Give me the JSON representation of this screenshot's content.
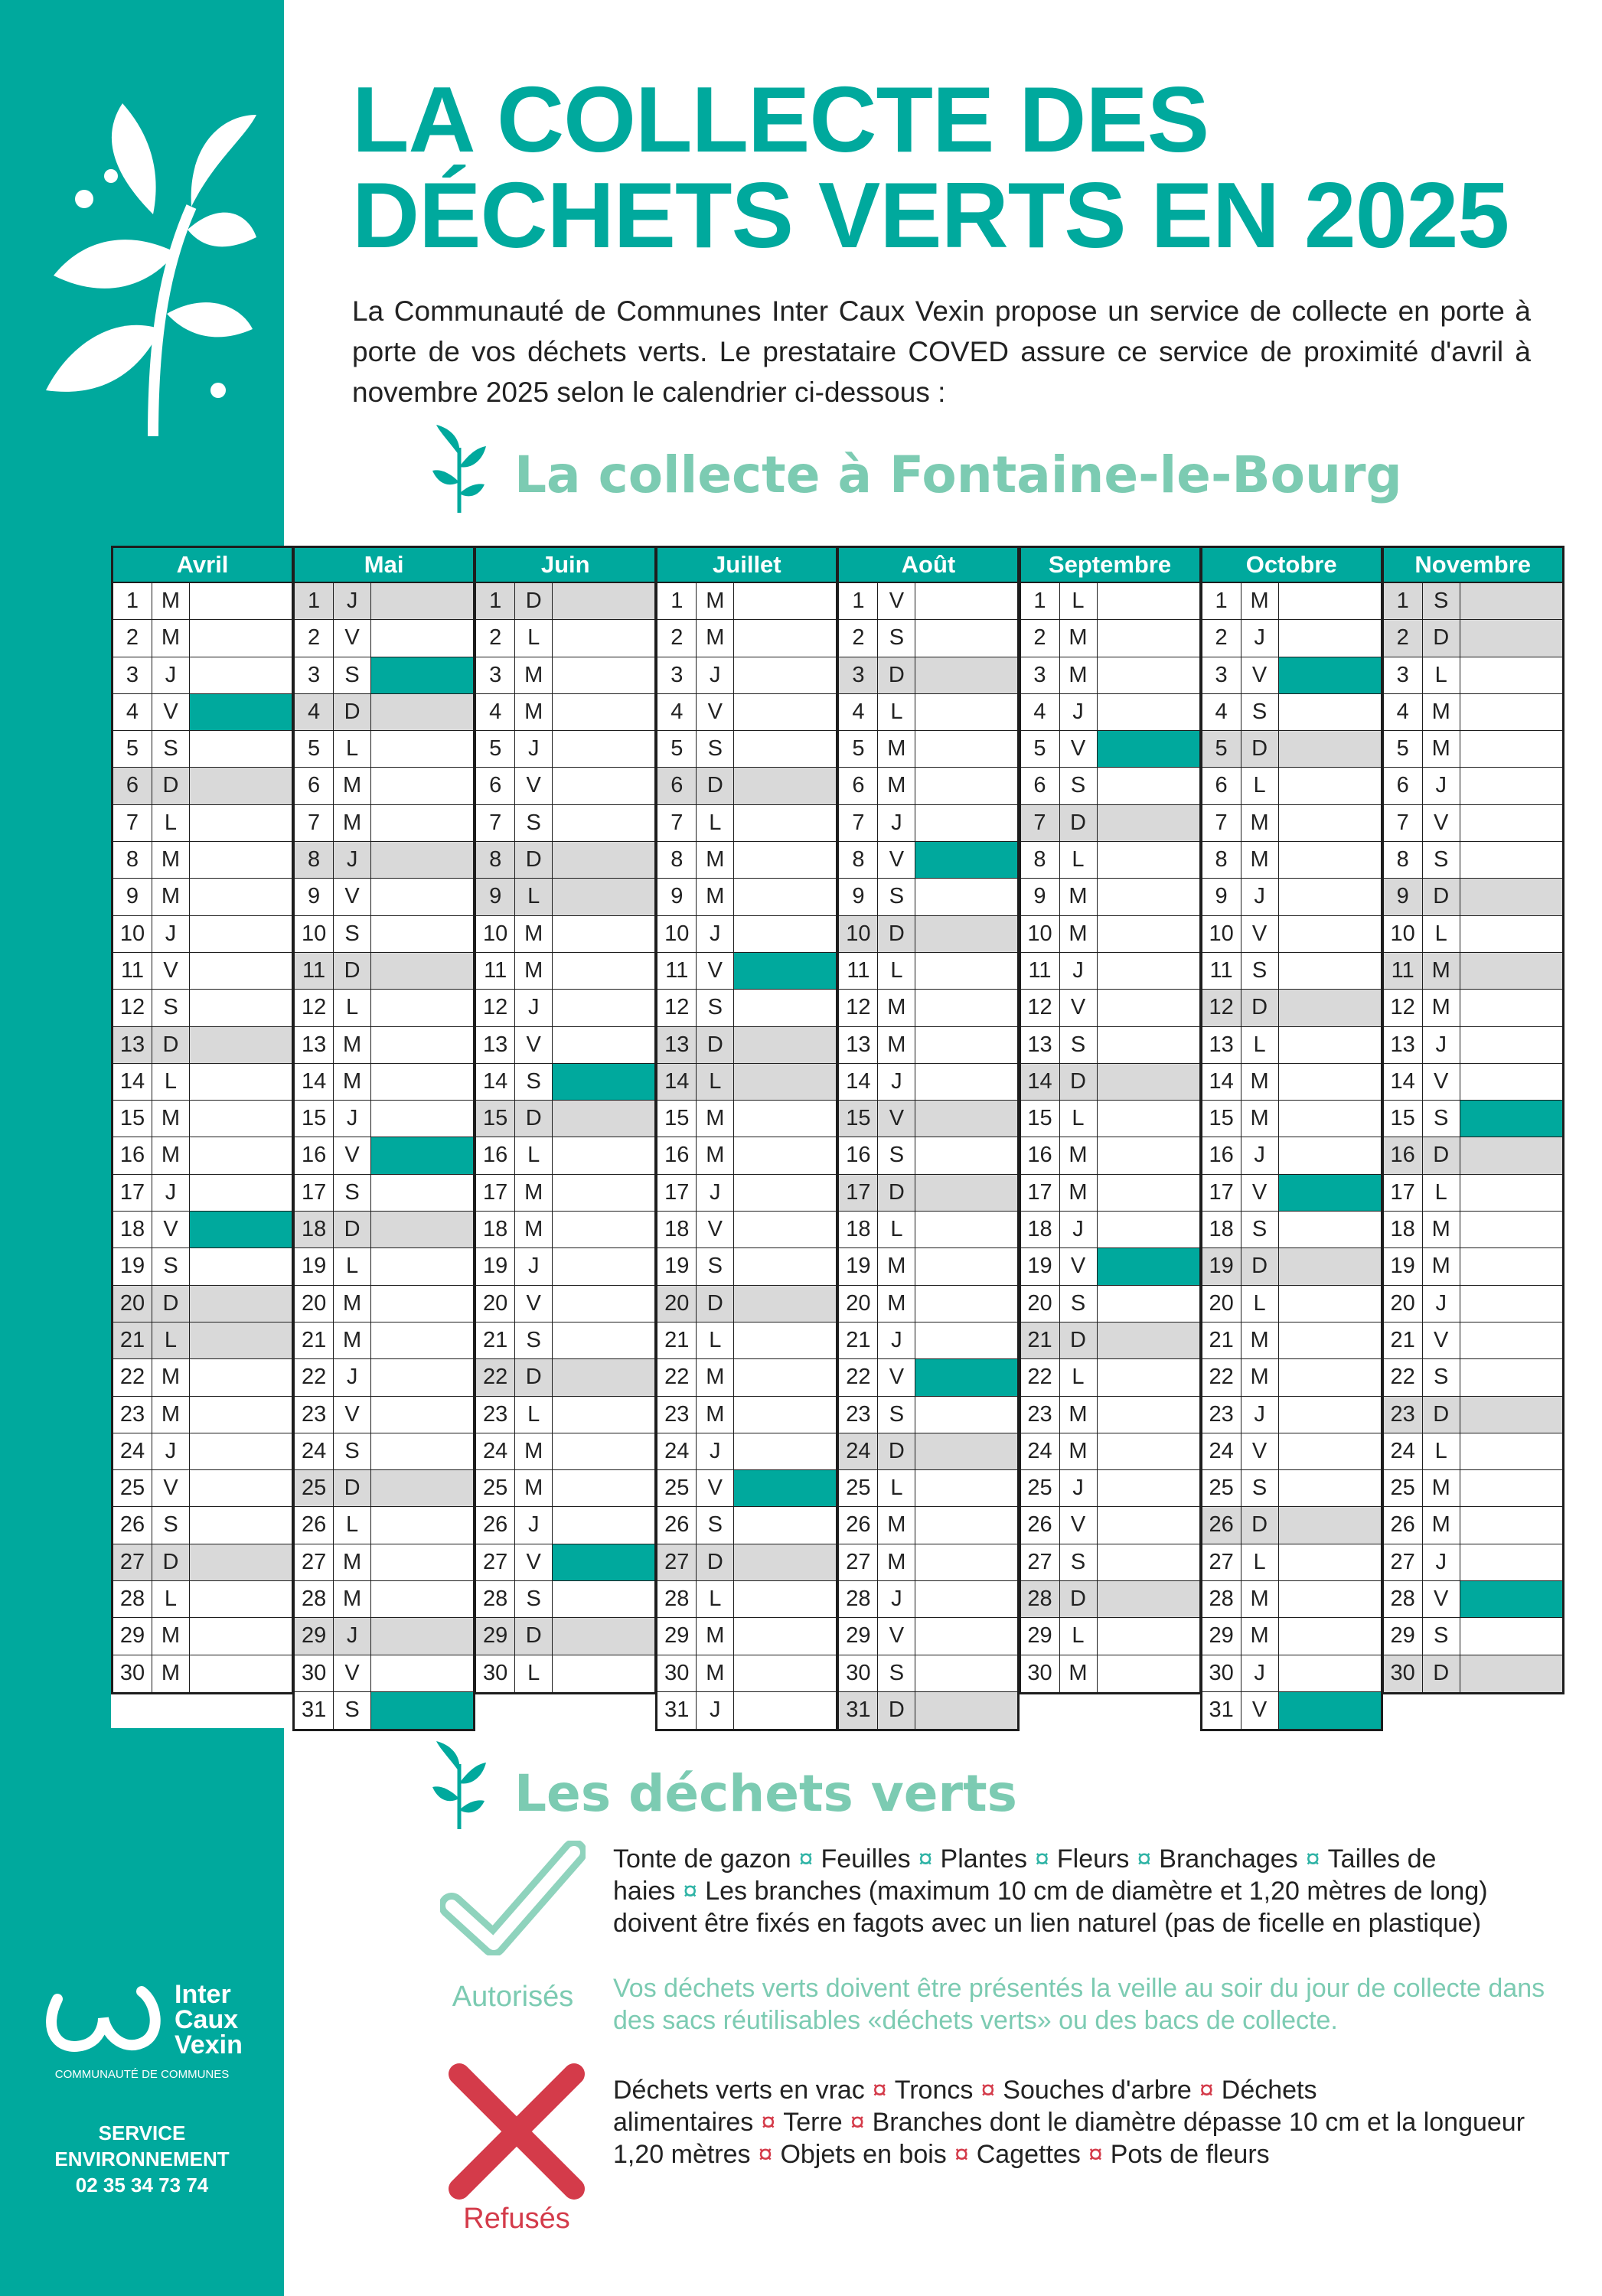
{
  "en_tete": {
    "titre_ligne_1": "LA COLLECTE DES",
    "titre_ligne_2": "DÉCHETS VERTS EN 2025",
    "introduction": "La Communauté de Communes Inter Caux Vexin propose un service de collecte en porte à porte de vos déchets verts. Le prestataire COVED assure ce service de proximité d'avril à novembre 2025 selon le calendrier ci-dessous :"
  },
  "calendrier": {
    "titre": "La collecte à Fontaine-le-Bourg",
    "mois": [
      {
        "nom": "Avril",
        "numeros": [
          1,
          2,
          3,
          4,
          5,
          6,
          7,
          8,
          9,
          10,
          11,
          12,
          13,
          14,
          15,
          16,
          17,
          18,
          19,
          20,
          21,
          22,
          23,
          24,
          25,
          26,
          27,
          28,
          29,
          30
        ],
        "jours": [
          "M",
          "M",
          "J",
          "V",
          "S",
          "D",
          "L",
          "M",
          "M",
          "J",
          "V",
          "S",
          "D",
          "L",
          "M",
          "M",
          "J",
          "V",
          "S",
          "D",
          "L",
          "M",
          "M",
          "J",
          "V",
          "S",
          "D",
          "L",
          "M",
          "M"
        ],
        "collecte": [
          4,
          18
        ],
        "jours_grises": [
          6,
          13,
          20,
          21,
          27
        ]
      },
      {
        "nom": "Mai",
        "numeros": [
          1,
          2,
          3,
          4,
          5,
          6,
          7,
          8,
          9,
          10,
          11,
          12,
          13,
          14,
          15,
          16,
          17,
          18,
          19,
          20,
          21,
          22,
          23,
          24,
          25,
          26,
          27,
          28,
          29,
          30,
          31
        ],
        "jours": [
          "J",
          "V",
          "S",
          "D",
          "L",
          "M",
          "M",
          "J",
          "V",
          "S",
          "D",
          "L",
          "M",
          "M",
          "J",
          "V",
          "S",
          "D",
          "L",
          "M",
          "M",
          "J",
          "V",
          "S",
          "D",
          "L",
          "M",
          "M",
          "J",
          "V",
          "S"
        ],
        "collecte": [
          3,
          16,
          31
        ],
        "jours_grises": [
          1,
          4,
          8,
          11,
          18,
          25,
          29
        ]
      },
      {
        "nom": "Juin",
        "numeros": [
          1,
          2,
          3,
          4,
          5,
          6,
          7,
          8,
          9,
          10,
          11,
          12,
          13,
          14,
          15,
          16,
          17,
          18,
          19,
          20,
          21,
          22,
          23,
          24,
          25,
          26,
          27,
          28,
          29,
          30
        ],
        "jours": [
          "D",
          "L",
          "M",
          "M",
          "J",
          "V",
          "S",
          "D",
          "L",
          "M",
          "M",
          "J",
          "V",
          "S",
          "D",
          "L",
          "M",
          "M",
          "J",
          "V",
          "S",
          "D",
          "L",
          "M",
          "M",
          "J",
          "V",
          "S",
          "D",
          "L"
        ],
        "collecte": [
          14,
          27
        ],
        "jours_grises": [
          1,
          8,
          9,
          15,
          22,
          29
        ]
      },
      {
        "nom": "Juillet",
        "numeros": [
          1,
          2,
          3,
          4,
          5,
          6,
          7,
          8,
          9,
          10,
          11,
          12,
          13,
          14,
          15,
          16,
          17,
          18,
          19,
          20,
          21,
          22,
          23,
          24,
          25,
          26,
          27,
          28,
          29,
          30,
          31
        ],
        "jours": [
          "M",
          "M",
          "J",
          "V",
          "S",
          "D",
          "L",
          "M",
          "M",
          "J",
          "V",
          "S",
          "D",
          "L",
          "M",
          "M",
          "J",
          "V",
          "S",
          "D",
          "L",
          "M",
          "M",
          "J",
          "V",
          "S",
          "D",
          "L",
          "M",
          "M",
          "J"
        ],
        "collecte": [
          11,
          25
        ],
        "jours_grises": [
          6,
          13,
          14,
          20,
          27
        ]
      },
      {
        "nom": "Août",
        "numeros": [
          1,
          2,
          3,
          4,
          5,
          6,
          7,
          8,
          9,
          10,
          11,
          12,
          13,
          14,
          15,
          16,
          17,
          18,
          19,
          20,
          21,
          22,
          23,
          24,
          25,
          26,
          27,
          28,
          29,
          30,
          31
        ],
        "jours": [
          "V",
          "S",
          "D",
          "L",
          "M",
          "M",
          "J",
          "V",
          "S",
          "D",
          "L",
          "M",
          "M",
          "J",
          "V",
          "S",
          "D",
          "L",
          "M",
          "M",
          "J",
          "V",
          "S",
          "D",
          "L",
          "M",
          "M",
          "J",
          "V",
          "S",
          "D"
        ],
        "collecte": [
          8,
          22
        ],
        "jours_grises": [
          3,
          10,
          15,
          17,
          24,
          31
        ]
      },
      {
        "nom": "Septembre",
        "numeros": [
          1,
          2,
          3,
          4,
          5,
          6,
          7,
          8,
          9,
          10,
          11,
          12,
          13,
          14,
          15,
          16,
          17,
          18,
          19,
          20,
          21,
          22,
          23,
          24,
          25,
          26,
          27,
          28,
          29,
          30
        ],
        "jours": [
          "L",
          "M",
          "M",
          "J",
          "V",
          "S",
          "D",
          "L",
          "M",
          "M",
          "J",
          "V",
          "S",
          "D",
          "L",
          "M",
          "M",
          "J",
          "V",
          "S",
          "D",
          "L",
          "M",
          "M",
          "J",
          "V",
          "S",
          "D",
          "L",
          "M"
        ],
        "collecte": [
          5,
          19
        ],
        "jours_grises": [
          7,
          14,
          21,
          28
        ]
      },
      {
        "nom": "Octobre",
        "numeros": [
          1,
          2,
          3,
          4,
          5,
          6,
          7,
          8,
          9,
          10,
          11,
          12,
          13,
          14,
          15,
          16,
          17,
          18,
          19,
          20,
          21,
          22,
          23,
          24,
          25,
          26,
          27,
          28,
          29,
          30,
          31
        ],
        "jours": [
          "M",
          "J",
          "V",
          "S",
          "D",
          "L",
          "M",
          "M",
          "J",
          "V",
          "S",
          "D",
          "L",
          "M",
          "M",
          "J",
          "V",
          "S",
          "D",
          "L",
          "M",
          "M",
          "J",
          "V",
          "S",
          "D",
          "L",
          "M",
          "M",
          "J",
          "V"
        ],
        "collecte": [
          3,
          17,
          31
        ],
        "jours_grises": [
          5,
          12,
          19,
          26
        ]
      },
      {
        "nom": "Novembre",
        "numeros": [
          1,
          2,
          3,
          4,
          5,
          6,
          7,
          8,
          9,
          10,
          11,
          12,
          13,
          14,
          15,
          16,
          17,
          18,
          19,
          20,
          21,
          22,
          23,
          24,
          25,
          26,
          27,
          28,
          29,
          30
        ],
        "jours": [
          "S",
          "D",
          "L",
          "M",
          "M",
          "J",
          "V",
          "S",
          "D",
          "L",
          "M",
          "M",
          "J",
          "V",
          "S",
          "D",
          "L",
          "M",
          "M",
          "J",
          "V",
          "S",
          "D",
          "L",
          "M",
          "M",
          "J",
          "V",
          "S",
          "D"
        ],
        "collecte": [
          15,
          28
        ],
        "jours_grises": [
          1,
          2,
          9,
          11,
          16,
          23,
          30
        ]
      }
    ]
  },
  "dechets_verts": {
    "titre": "Les déchets verts",
    "separateur": "¤",
    "autorises": {
      "label": "Autorisés",
      "elements": [
        "Tonte de gazon",
        "Feuilles",
        "Plantes",
        "Fleurs",
        "Branchages",
        "Tailles de haies",
        "Les branches (maximum 10 cm de diamètre et 1,20 mètres de long) doivent être fixés en fagots avec un lien naturel (pas de ficelle en plastique)"
      ],
      "consigne": "Vos déchets verts doivent être présentés la veille au soir du jour de collecte dans des sacs réutilisables «déchets verts» ou des bacs de collecte."
    },
    "refuses": {
      "label": "Refusés",
      "elements": [
        "Déchets verts en vrac",
        "Troncs",
        "Souches d'arbre",
        "Déchets alimentaires",
        "Terre",
        "Branches dont le diamètre dépasse 10 cm et la longueur 1,20 mètres",
        "Objets en bois",
        "Cagettes",
        "Pots de fleurs"
      ]
    }
  },
  "barre_laterale": {
    "logo": [
      "Inter",
      "Caux",
      "Vexin"
    ],
    "sous_titre": "COMMUNAUTÉ DE COMMUNES",
    "service": [
      "SERVICE",
      "ENVIRONNEMENT"
    ],
    "telephone": "02 35 34 73 74"
  }
}
